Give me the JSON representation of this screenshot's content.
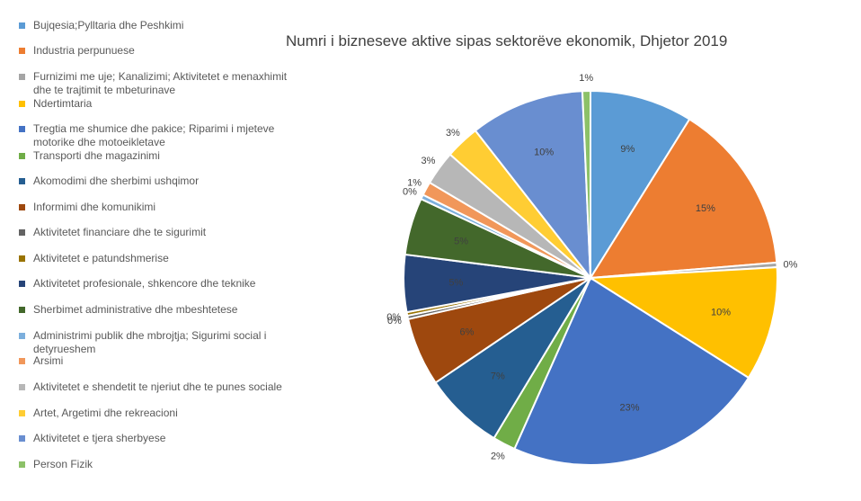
{
  "chart_data": {
    "type": "pie",
    "title": "Numri i bizneseve aktive sipas sektorëve ekonomik, Dhjetor 2019",
    "legend_position": "left",
    "slices": [
      {
        "label": "Bujqesia;Pylltaria dhe Peshkimi",
        "value": 9,
        "display": "9%",
        "color": "#5B9BD5"
      },
      {
        "label": "Industria perpunuese",
        "value": 15,
        "display": "15%",
        "color": "#ED7D31"
      },
      {
        "label": "Furnizimi me uje; Kanalizimi; Aktivitetet e menaxhimit dhe te trajtimit te mbeturinave",
        "value": 0.4,
        "display": "0%",
        "color": "#A5A5A5"
      },
      {
        "label": "Ndertimtaria",
        "value": 10,
        "display": "10%",
        "color": "#FFC000"
      },
      {
        "label": "Tregtia me shumice dhe pakice; Riparimi i mjeteve motorike dhe motoeikletave",
        "value": 23,
        "display": "23%",
        "color": "#4472C4"
      },
      {
        "label": "Transporti dhe magazinimi",
        "value": 2,
        "display": "2%",
        "color": "#70AD47"
      },
      {
        "label": "Akomodimi dhe sherbimi ushqimor",
        "value": 7,
        "display": "7%",
        "color": "#255E91"
      },
      {
        "label": "Informimi dhe komunikimi",
        "value": 6,
        "display": "6%",
        "color": "#9E480E"
      },
      {
        "label": "Aktivitetet financiare dhe te sigurimit",
        "value": 0.3,
        "display": "0%",
        "color": "#636363"
      },
      {
        "label": "Aktivitetet e patundshmerise",
        "value": 0.3,
        "display": "0%",
        "color": "#997300"
      },
      {
        "label": "Aktivitetet profesionale, shkencore dhe teknike",
        "value": 5,
        "display": "5%",
        "color": "#264478"
      },
      {
        "label": "Sherbimet administrative dhe mbeshtetese",
        "value": 5,
        "display": "5%",
        "color": "#43682B"
      },
      {
        "label": "Administrimi publik dhe mbrojtja; Sigurimi social i detyrueshem",
        "value": 0.4,
        "display": "0%",
        "color": "#7CAFDD"
      },
      {
        "label": "Arsimi",
        "value": 1.2,
        "display": "1%",
        "color": "#F1975A"
      },
      {
        "label": "Aktivitetet e shendetit te njeriut dhe te punes sociale",
        "value": 3,
        "display": "3%",
        "color": "#B7B7B7"
      },
      {
        "label": "Artet, Argetimi dhe rekreacioni",
        "value": 3,
        "display": "3%",
        "color": "#FFCD33"
      },
      {
        "label": "Aktivitetet e tjera sherbyese",
        "value": 10,
        "display": "10%",
        "color": "#698ED0"
      },
      {
        "label": "Person Fizik",
        "value": 0.7,
        "display": "1%",
        "color": "#8CC168"
      }
    ]
  }
}
